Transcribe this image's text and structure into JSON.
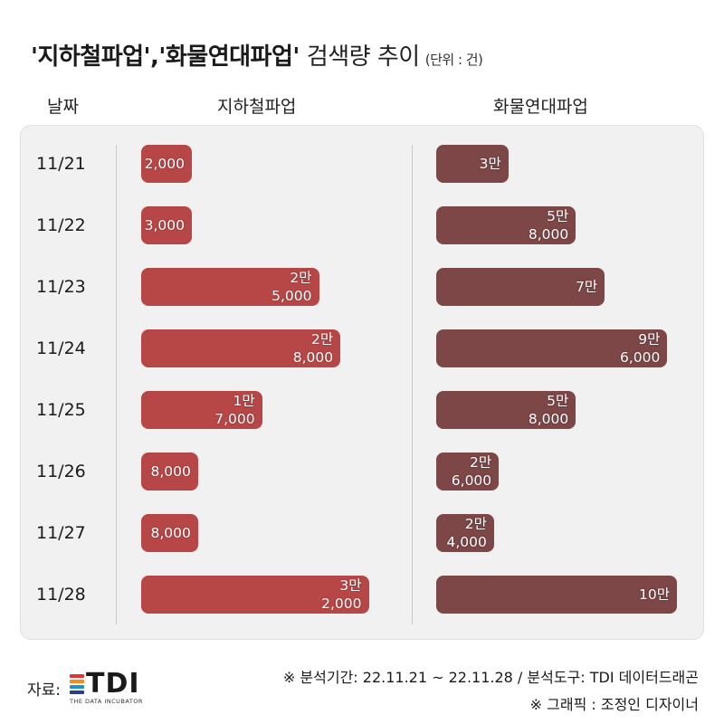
{
  "title": {
    "main": "'지하철파업','화물연대파업'",
    "sub": "검색량 추이",
    "unit": "(단위 : 건)"
  },
  "headers": {
    "date": "날짜",
    "subway": "지하철파업",
    "cargo": "화물연대파업"
  },
  "colors": {
    "subway": "#b74747",
    "cargo": "#7d4647",
    "panel": "#f1f1f1"
  },
  "chart_data": {
    "type": "bar",
    "orientation": "horizontal",
    "categories": [
      "11/21",
      "11/22",
      "11/23",
      "11/24",
      "11/25",
      "11/26",
      "11/27",
      "11/28"
    ],
    "series": [
      {
        "name": "지하철파업",
        "values": [
          2000,
          3000,
          25000,
          28000,
          17000,
          8000,
          8000,
          32000
        ],
        "labels": [
          "2,000",
          "3,000",
          "2만\n5,000",
          "2만\n8,000",
          "1만\n7,000",
          "8,000",
          "8,000",
          "3만\n2,000"
        ]
      },
      {
        "name": "화물연대파업",
        "values": [
          30000,
          58000,
          70000,
          96000,
          58000,
          26000,
          24000,
          100000
        ],
        "labels": [
          "3만",
          "5만\n8,000",
          "7만",
          "9만\n6,000",
          "5만\n8,000",
          "2만\n6,000",
          "2만\n4,000",
          "10만"
        ]
      }
    ]
  },
  "footer": {
    "period": "※ 분석기간: 22.11.21 ~ 22.11.28 / 분석도구: TDI 데이터드래곤",
    "graphic": "※ 그래픽 : 조정인 디자이너",
    "source_label": "자료:",
    "logo_text": "TDI",
    "logo_tagline": "THE DATA INCUBATOR",
    "logo_colors": [
      "#e4342c",
      "#f28c1e",
      "#1f8fd6",
      "#2a3d8f"
    ]
  }
}
